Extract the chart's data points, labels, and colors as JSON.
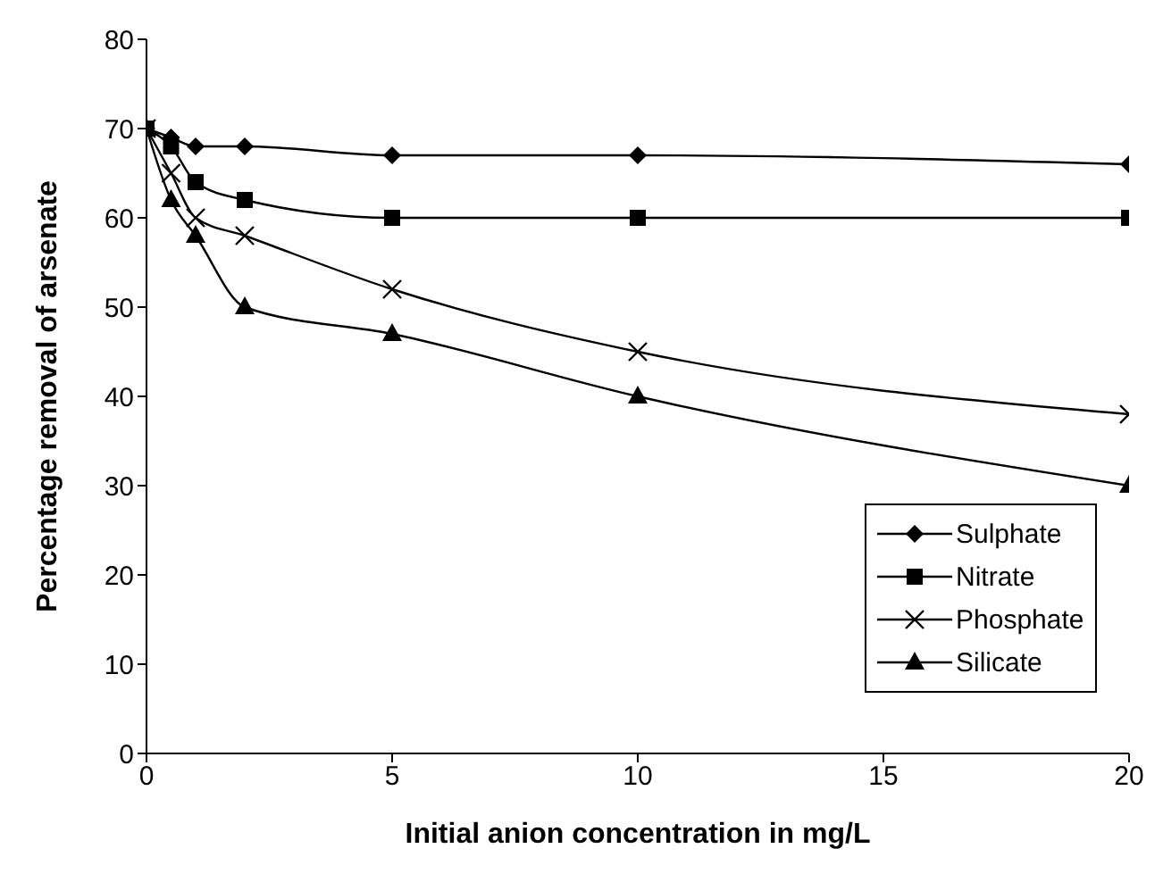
{
  "chart_data": {
    "type": "line",
    "xlabel": "Initial anion concentration in mg/L",
    "ylabel": "Percentage removal of arsenate",
    "x": [
      0,
      0.5,
      1,
      2,
      5,
      10,
      20
    ],
    "series": [
      {
        "name": "Sulphate",
        "color": "#000000",
        "marker": "diamond",
        "values": [
          70,
          69,
          68,
          68,
          67,
          67,
          66
        ]
      },
      {
        "name": "Nitrate",
        "color": "#000000",
        "marker": "square",
        "values": [
          70,
          68,
          64,
          62,
          60,
          60,
          60
        ]
      },
      {
        "name": "Phosphate",
        "color": "#000000",
        "marker": "cross",
        "values": [
          70,
          65,
          60,
          58,
          52,
          45,
          38
        ]
      },
      {
        "name": "Silicate",
        "color": "#000000",
        "marker": "triangle",
        "values": [
          70,
          62,
          58,
          50,
          47,
          40,
          30
        ]
      }
    ],
    "xlim": [
      0,
      20
    ],
    "xticks": [
      0,
      5,
      10,
      15,
      20
    ],
    "ylim": [
      0,
      80
    ],
    "yticks": [
      0,
      10,
      20,
      30,
      40,
      50,
      60,
      70,
      80
    ],
    "grid": false,
    "legend": "bottom right",
    "line_style": "solid"
  }
}
